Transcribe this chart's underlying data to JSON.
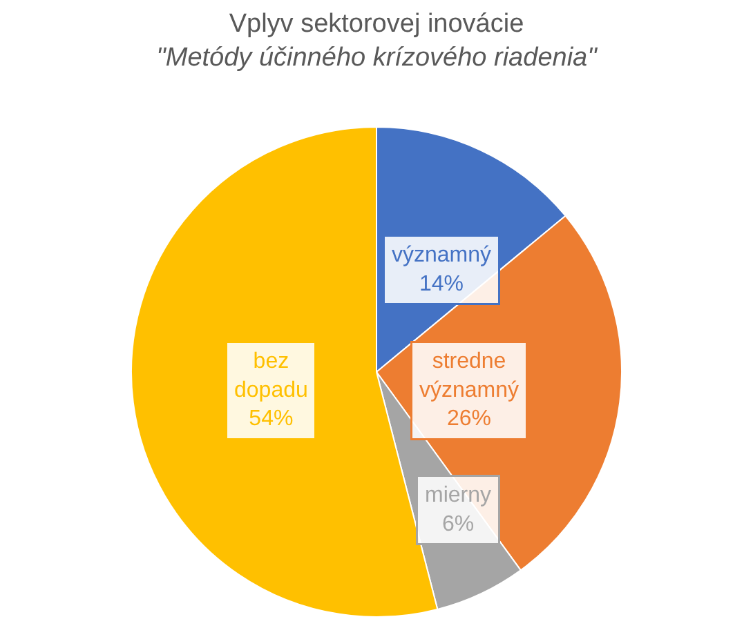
{
  "chart_data": {
    "type": "pie",
    "title": "Vplyv sektorovej inovácie",
    "subtitle": "\"Metódy účinného krízového riadenia\"",
    "categories": [
      "významný",
      "stredne významný",
      "mierny",
      "bez dopadu"
    ],
    "values": [
      14,
      26,
      6,
      54
    ],
    "colors": [
      "#4472c4",
      "#ed7d31",
      "#a5a5a5",
      "#ffc000"
    ],
    "value_labels": [
      "14%",
      "26%",
      "6%",
      "54%"
    ]
  }
}
